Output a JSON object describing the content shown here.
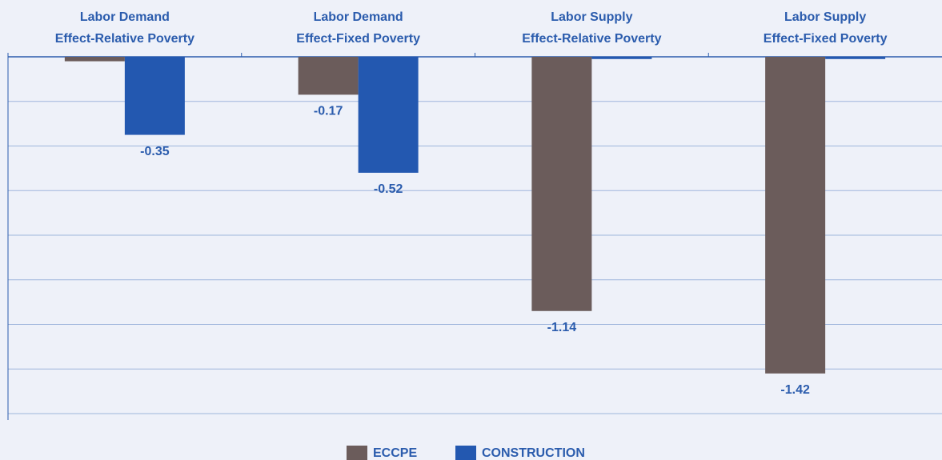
{
  "chart_data": {
    "type": "bar",
    "categories": [
      [
        "Labor Demand",
        "Effect-Relative Poverty"
      ],
      [
        "Labor Demand",
        "Effect-Fixed Poverty"
      ],
      [
        "Labor Supply",
        "Effect-Relative Poverty"
      ],
      [
        "Labor Supply",
        "Effect-Fixed Poverty"
      ]
    ],
    "series": [
      {
        "name": "ECCPE",
        "color": "#6b5c5b",
        "values": [
          -0.02,
          -0.17,
          -1.14,
          -1.42
        ],
        "value_labels": [
          null,
          "-0.17",
          "-1.14",
          "-1.42"
        ]
      },
      {
        "name": "CONSTRUCTION",
        "color": "#2358b0",
        "values": [
          -0.35,
          -0.52,
          -0.01,
          -0.01
        ],
        "value_labels": [
          "-0.35",
          "-0.52",
          null,
          null
        ]
      }
    ],
    "ylim": [
      -1.6,
      0
    ],
    "yticks": [
      0,
      -0.2,
      -0.4,
      -0.6,
      -0.8,
      -1,
      -1.2,
      -1.4,
      -1.6
    ],
    "grid": true,
    "legend": "bottom"
  }
}
